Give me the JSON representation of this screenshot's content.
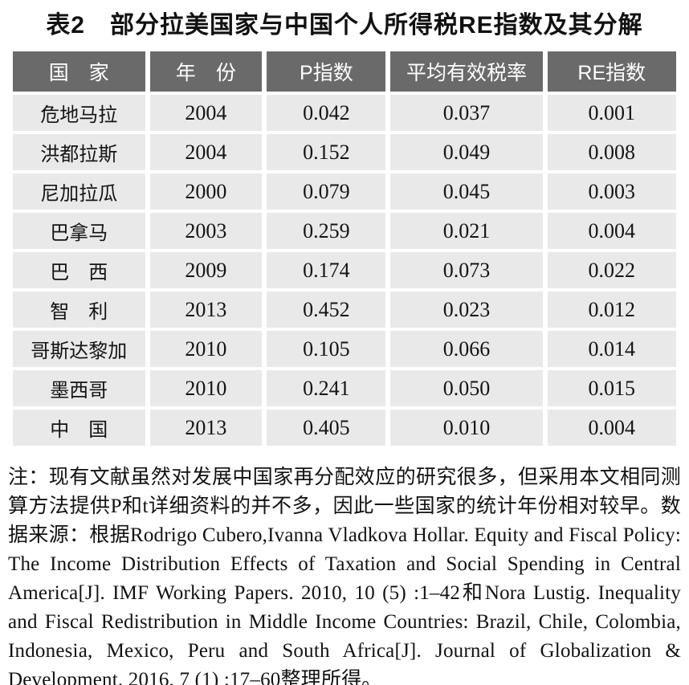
{
  "title": "表2　部分拉美国家与中国个人所得税RE指数及其分解",
  "table": {
    "headers": {
      "country": "国　家",
      "year": "年　份",
      "p_index": "P指数",
      "avg_tax_rate": "平均有效税率",
      "re_index": "RE指数"
    },
    "rows": [
      {
        "country": "危地马拉",
        "year": "2004",
        "p_index": "0.042",
        "avg_tax_rate": "0.037",
        "re_index": "0.001"
      },
      {
        "country": "洪都拉斯",
        "year": "2004",
        "p_index": "0.152",
        "avg_tax_rate": "0.049",
        "re_index": "0.008"
      },
      {
        "country": "尼加拉瓜",
        "year": "2000",
        "p_index": "0.079",
        "avg_tax_rate": "0.045",
        "re_index": "0.003"
      },
      {
        "country": "巴拿马",
        "year": "2003",
        "p_index": "0.259",
        "avg_tax_rate": "0.021",
        "re_index": "0.004"
      },
      {
        "country": "巴　西",
        "year": "2009",
        "p_index": "0.174",
        "avg_tax_rate": "0.073",
        "re_index": "0.022"
      },
      {
        "country": "智　利",
        "year": "2013",
        "p_index": "0.452",
        "avg_tax_rate": "0.023",
        "re_index": "0.012"
      },
      {
        "country": "哥斯达黎加",
        "year": "2010",
        "p_index": "0.105",
        "avg_tax_rate": "0.066",
        "re_index": "0.014"
      },
      {
        "country": "墨西哥",
        "year": "2010",
        "p_index": "0.241",
        "avg_tax_rate": "0.050",
        "re_index": "0.015"
      },
      {
        "country": "中　国",
        "year": "2013",
        "p_index": "0.405",
        "avg_tax_rate": "0.010",
        "re_index": "0.004"
      }
    ]
  },
  "note": "注：现有文献虽然对发展中国家再分配效应的研究很多，但采用本文相同测算方法提供P和t详细资料的并不多，因此一些国家的统计年份相对较早。数据来源：根据Rodrigo Cubero,Ivanna Vladkova Hollar. Equity and Fiscal Policy: The Income Distribution Effects of Taxation and Social Spending in Central America[J]. IMF Working Papers. 2010, 10 (5) :1–42和Nora Lustig. Inequality and Fiscal Redistribution in Middle Income Countries: Brazil, Chile, Colombia, Indonesia, Mexico, Peru and South Africa[J]. Journal of Globalization & Development. 2016, 7 (1) :17–60整理所得。",
  "colors": {
    "header_bg": "#6a6a6a",
    "header_text": "#ffffff",
    "cell_bg": "#e9e9e9",
    "text": "#141414"
  }
}
